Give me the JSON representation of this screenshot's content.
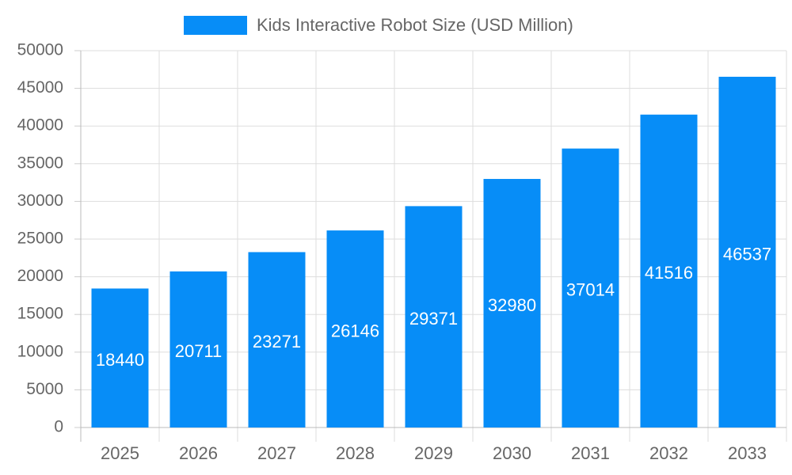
{
  "chart_data": {
    "type": "bar",
    "categories": [
      "2025",
      "2026",
      "2027",
      "2028",
      "2029",
      "2030",
      "2031",
      "2032",
      "2033"
    ],
    "series": [
      {
        "name": "Kids Interactive Robot Size (USD Million)",
        "color": "#078df7",
        "values": [
          18440,
          20711,
          23271,
          26146,
          29371,
          32980,
          37014,
          41516,
          46537
        ]
      }
    ],
    "ylim": [
      0,
      50000
    ],
    "yticks": [
      0,
      5000,
      10000,
      15000,
      20000,
      25000,
      30000,
      35000,
      40000,
      45000,
      50000
    ],
    "grid": true,
    "legend": "top"
  }
}
